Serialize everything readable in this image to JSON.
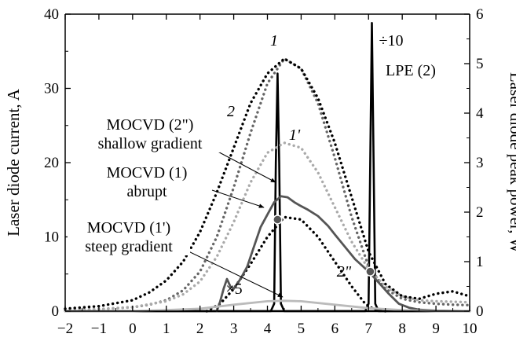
{
  "chart_data": {
    "type": "line",
    "xlabel": "",
    "ylabel": "Laser diode current, A",
    "y2label": "Laser diode peak power, W",
    "xlim": [
      -2,
      10
    ],
    "ylim": [
      0,
      40
    ],
    "y2lim": [
      0,
      6
    ],
    "x_ticks": [
      "−2",
      "−1",
      "0",
      "1",
      "2",
      "3",
      "4",
      "5",
      "6",
      "7",
      "8",
      "9",
      "10"
    ],
    "y_ticks": [
      "0",
      "10",
      "20",
      "30",
      "40"
    ],
    "y2_ticks": [
      "0",
      "1",
      "2",
      "3",
      "4",
      "5",
      "6"
    ],
    "grid": false,
    "series": [
      {
        "name": "",
        "axis": "left",
        "style": "solid",
        "color": "#000000",
        "x": [
          -2,
          3.6,
          4.1,
          4.2,
          4.25,
          4.3,
          4.35,
          4.4,
          4.5,
          10
        ],
        "y": [
          0,
          0,
          0,
          1,
          20,
          32,
          20,
          1,
          0,
          0
        ]
      },
      {
        "name": "",
        "axis": "left",
        "style": "solid",
        "color": "#000000",
        "x": [
          -2,
          6.9,
          7.0,
          7.05,
          7.1,
          7.15,
          7.2,
          7.3,
          7.6,
          10
        ],
        "y": [
          0,
          0,
          1,
          20,
          38.8,
          20,
          1,
          0,
          0,
          0
        ]
      },
      {
        "name": "1",
        "axis": "right",
        "style": "dotted",
        "color": "#666666",
        "x": [
          -2,
          -1,
          0,
          0.5,
          1,
          1.5,
          2,
          2.5,
          3,
          3.5,
          4,
          4.5,
          5,
          5.5,
          6,
          6.5,
          7,
          7.5,
          8,
          8.5,
          9,
          9.5,
          10
        ],
        "y": [
          0.02,
          0.04,
          0.08,
          0.13,
          0.22,
          0.42,
          0.8,
          1.5,
          2.5,
          3.6,
          4.6,
          5.1,
          4.9,
          4.2,
          3.1,
          1.9,
          0.9,
          0.45,
          0.25,
          0.18,
          0.15,
          0.13,
          0.12
        ]
      },
      {
        "name": "1'",
        "axis": "right",
        "style": "dotted",
        "color": "#aaaaaa",
        "x": [
          -2,
          -1,
          0,
          1,
          1.5,
          2,
          2.5,
          3,
          3.5,
          4,
          4.5,
          5,
          5.5,
          6,
          6.5,
          7,
          7.5,
          8,
          8.5,
          9,
          10
        ],
        "y": [
          0.02,
          0.04,
          0.08,
          0.2,
          0.34,
          0.6,
          1.1,
          1.8,
          2.6,
          3.2,
          3.4,
          3.3,
          2.8,
          2.1,
          1.4,
          0.85,
          0.5,
          0.3,
          0.22,
          0.2,
          0.18
        ]
      },
      {
        "name": "2",
        "axis": "right",
        "style": "dotted",
        "color": "#000000",
        "x": [
          -2,
          -1,
          0,
          0.5,
          1,
          1.5,
          2,
          2.5,
          3,
          3.5,
          4,
          4.5,
          5,
          5.5,
          6,
          6.5,
          7,
          7.5,
          8,
          8.5,
          9,
          9.5,
          10
        ],
        "y": [
          0.05,
          0.1,
          0.22,
          0.38,
          0.62,
          1.0,
          1.6,
          2.4,
          3.3,
          4.2,
          4.8,
          5.1,
          4.9,
          4.3,
          3.4,
          2.3,
          1.2,
          0.55,
          0.3,
          0.25,
          0.35,
          0.4,
          0.3
        ]
      },
      {
        "name": "2\"",
        "axis": "right",
        "style": "dotted",
        "color": "#000000",
        "x": [
          2.2,
          2.6,
          3,
          3.5,
          4,
          4.5,
          5,
          5.5,
          6,
          6.5,
          6.9,
          7.2,
          7.5
        ],
        "y": [
          0.0,
          0.15,
          0.45,
          0.95,
          1.5,
          1.9,
          1.85,
          1.5,
          1.0,
          0.5,
          0.15,
          0.02,
          0.0
        ]
      },
      {
        "name": "",
        "axis": "right",
        "style": "solid",
        "color": "#555555",
        "x": [
          2.5,
          2.6,
          2.7,
          2.8,
          2.9,
          3.0,
          3.2,
          3.4,
          3.6,
          3.8,
          4.0,
          4.2,
          4.4,
          4.6,
          4.8,
          5.0,
          5.2,
          5.5,
          5.8,
          6.0,
          6.3,
          6.6,
          7.0,
          7.3,
          7.6,
          7.9,
          8.2,
          8.5,
          9.0,
          10
        ],
        "y": [
          0.0,
          0.2,
          0.45,
          0.65,
          0.5,
          0.45,
          0.65,
          0.9,
          1.3,
          1.7,
          1.95,
          2.2,
          2.32,
          2.3,
          2.2,
          2.12,
          2.05,
          1.92,
          1.72,
          1.55,
          1.3,
          1.05,
          0.8,
          0.58,
          0.35,
          0.15,
          0.07,
          0.03,
          0.01,
          0.0
        ]
      },
      {
        "name": "",
        "axis": "right",
        "style": "solid",
        "color": "#bbbbbb",
        "x": [
          -2,
          0,
          1,
          2,
          3,
          4,
          4.5,
          5,
          6,
          7,
          8,
          9,
          10
        ],
        "y": [
          0.0,
          0.0,
          0.02,
          0.05,
          0.13,
          0.2,
          0.21,
          0.2,
          0.13,
          0.06,
          0.02,
          0.0,
          0.0
        ]
      }
    ],
    "markers": [
      {
        "x": 4.3,
        "y": 1.85,
        "axis": "right"
      },
      {
        "x": 7.05,
        "y": 0.8,
        "axis": "right"
      }
    ],
    "annotations": [
      {
        "text": "÷10"
      },
      {
        "text": "LPE (2)"
      },
      {
        "text": "MOCVD (2\")"
      },
      {
        "text": "shallow gradient"
      },
      {
        "text": "MOCVD (1)"
      },
      {
        "text": "abrupt"
      },
      {
        "text": "MOCVD (1')"
      },
      {
        "text": "steep gradient"
      },
      {
        "text": "×5"
      }
    ]
  }
}
